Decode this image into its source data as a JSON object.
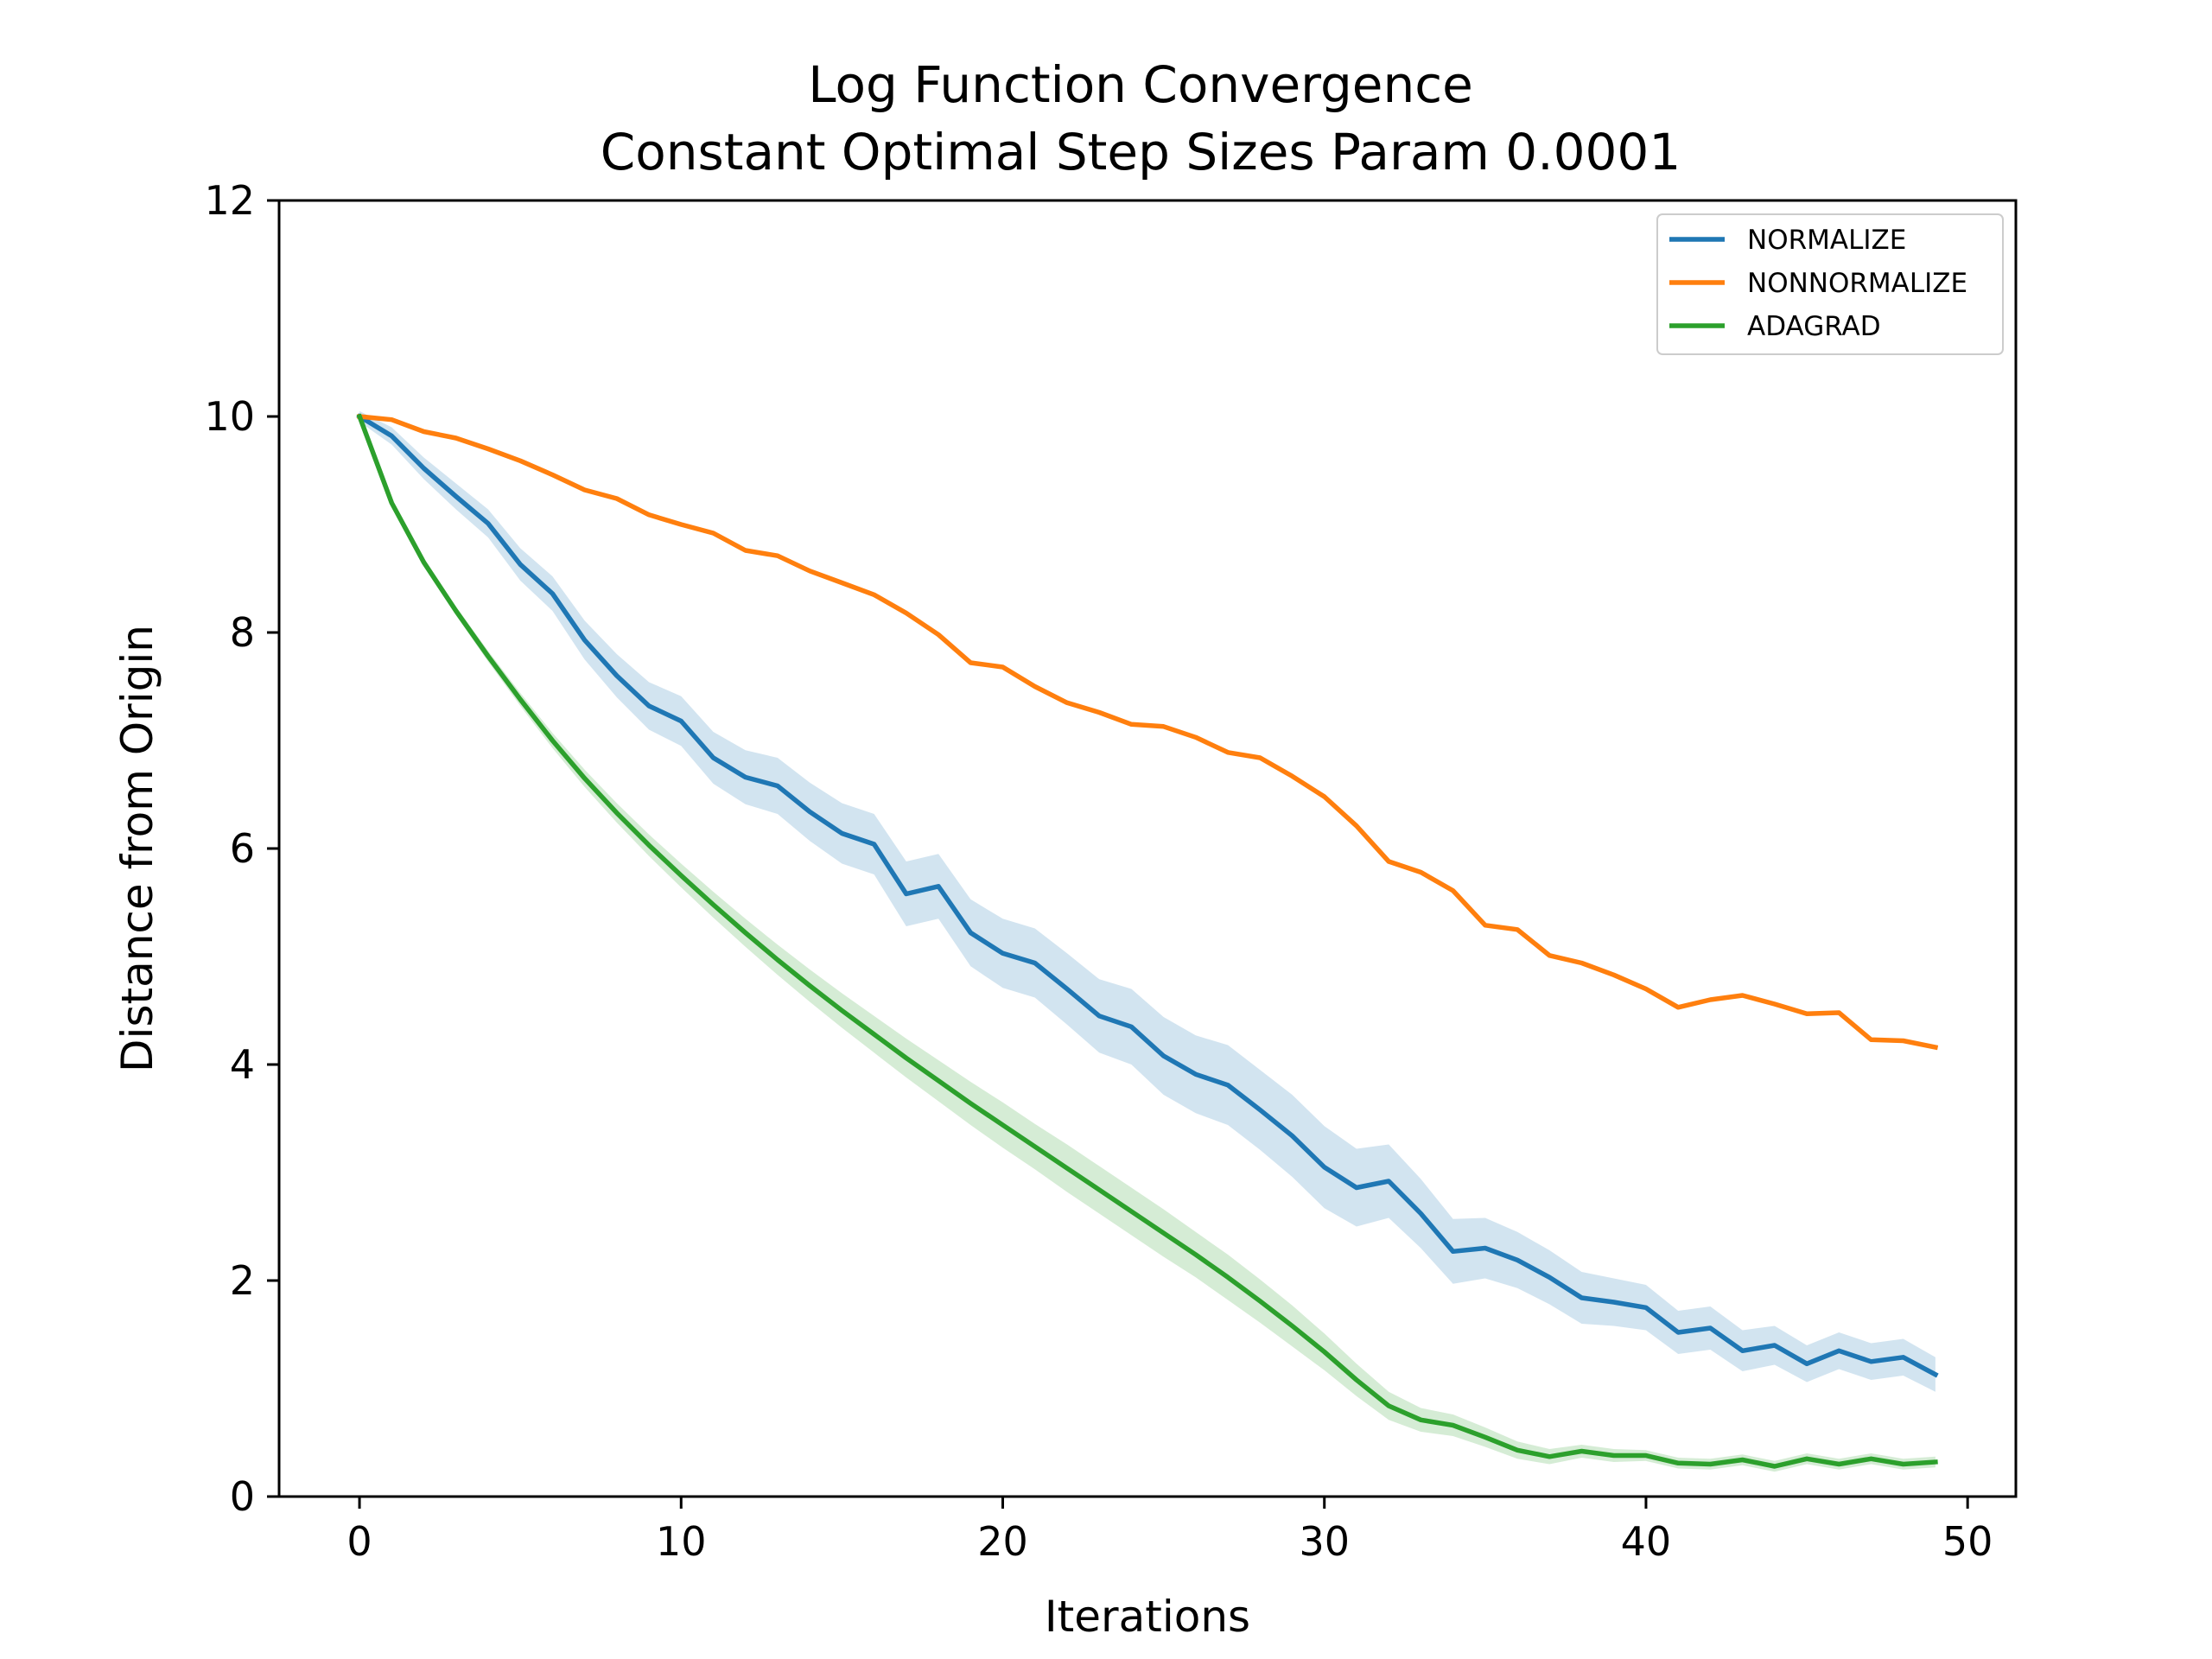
{
  "chart_data": {
    "type": "line",
    "title": "Log Function Convergence",
    "subtitle": "Constant Optimal Step Sizes Param 0.0001",
    "xlabel": "Iterations",
    "ylabel": "Distance from Origin",
    "xlim": [
      -2.5,
      51.5
    ],
    "ylim": [
      0,
      12
    ],
    "xticks": [
      0,
      10,
      20,
      30,
      40,
      50
    ],
    "yticks": [
      0,
      2,
      4,
      6,
      8,
      10,
      12
    ],
    "grid": false,
    "legend_position": "top-right",
    "series": [
      {
        "name": "NORMALIZE",
        "color": "#1f77b4",
        "values": [
          10.0,
          9.82,
          9.52,
          9.26,
          9.01,
          8.63,
          8.36,
          7.93,
          7.6,
          7.32,
          7.18,
          6.84,
          6.66,
          6.58,
          6.34,
          6.14,
          6.04,
          5.58,
          5.65,
          5.22,
          5.03,
          4.94,
          4.7,
          4.45,
          4.35,
          4.08,
          3.91,
          3.81,
          3.58,
          3.34,
          3.05,
          2.86,
          2.92,
          2.62,
          2.27,
          2.3,
          2.19,
          2.03,
          1.84,
          1.8,
          1.75,
          1.52,
          1.56,
          1.35,
          1.4,
          1.23,
          1.35,
          1.25,
          1.29,
          1.13
        ],
        "band": [
          0.05,
          0.08,
          0.1,
          0.12,
          0.13,
          0.15,
          0.16,
          0.18,
          0.2,
          0.22,
          0.23,
          0.24,
          0.25,
          0.26,
          0.27,
          0.28,
          0.28,
          0.3,
          0.3,
          0.31,
          0.32,
          0.32,
          0.33,
          0.34,
          0.35,
          0.36,
          0.36,
          0.37,
          0.37,
          0.38,
          0.38,
          0.36,
          0.34,
          0.32,
          0.3,
          0.28,
          0.26,
          0.25,
          0.24,
          0.22,
          0.21,
          0.2,
          0.2,
          0.19,
          0.18,
          0.17,
          0.17,
          0.17,
          0.17,
          0.16
        ]
      },
      {
        "name": "NONNORMALIZE",
        "color": "#ff7f0e",
        "values": [
          10.0,
          9.97,
          9.86,
          9.8,
          9.7,
          9.59,
          9.46,
          9.32,
          9.24,
          9.09,
          9.0,
          8.92,
          8.76,
          8.71,
          8.57,
          8.46,
          8.35,
          8.18,
          7.98,
          7.72,
          7.68,
          7.5,
          7.35,
          7.26,
          7.15,
          7.13,
          7.03,
          6.89,
          6.84,
          6.67,
          6.48,
          6.21,
          5.88,
          5.78,
          5.61,
          5.29,
          5.25,
          5.01,
          4.94,
          4.83,
          4.7,
          4.53,
          4.6,
          4.64,
          4.56,
          4.47,
          4.48,
          4.23,
          4.22,
          4.16
        ]
      },
      {
        "name": "ADAGRAD",
        "color": "#2ca02c",
        "values": [
          10.0,
          9.2,
          8.65,
          8.2,
          7.78,
          7.38,
          7.0,
          6.65,
          6.33,
          6.03,
          5.75,
          5.48,
          5.22,
          4.97,
          4.73,
          4.5,
          4.28,
          4.06,
          3.85,
          3.64,
          3.44,
          3.24,
          3.04,
          2.84,
          2.64,
          2.44,
          2.24,
          2.03,
          1.81,
          1.58,
          1.34,
          1.08,
          0.84,
          0.71,
          0.66,
          0.55,
          0.43,
          0.37,
          0.42,
          0.38,
          0.38,
          0.31,
          0.3,
          0.34,
          0.28,
          0.35,
          0.3,
          0.35,
          0.3,
          0.32
        ],
        "band": [
          0.0,
          0.02,
          0.03,
          0.04,
          0.05,
          0.06,
          0.07,
          0.08,
          0.09,
          0.1,
          0.11,
          0.12,
          0.13,
          0.14,
          0.15,
          0.16,
          0.17,
          0.18,
          0.19,
          0.2,
          0.21,
          0.21,
          0.22,
          0.22,
          0.22,
          0.22,
          0.21,
          0.21,
          0.2,
          0.19,
          0.17,
          0.15,
          0.13,
          0.11,
          0.1,
          0.09,
          0.08,
          0.07,
          0.06,
          0.06,
          0.05,
          0.05,
          0.05,
          0.05,
          0.05,
          0.05,
          0.05,
          0.05,
          0.05,
          0.05
        ]
      }
    ]
  }
}
